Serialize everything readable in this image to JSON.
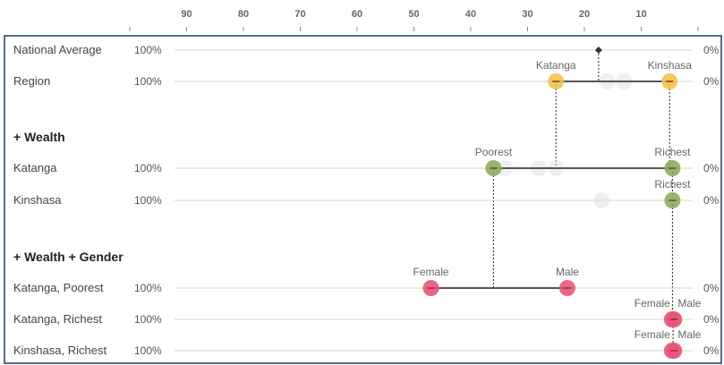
{
  "chart_data": {
    "type": "scatter",
    "x_axis": {
      "ticks": [
        90,
        80,
        70,
        60,
        50,
        40,
        30,
        20,
        10
      ],
      "range": [
        100,
        0
      ],
      "left_label": "100%",
      "right_label": "0%"
    },
    "colors": {
      "region": "#f1c34a",
      "wealth": "#8faa5f",
      "gender": "#e8557a",
      "ghost": "#dcdcdc",
      "line": "#555555",
      "frame": "#1f3b6f"
    },
    "sections": [
      {
        "id": "wealth",
        "label": "+ Wealth"
      },
      {
        "id": "wealth_gender",
        "label": "+ Wealth + Gender"
      }
    ],
    "rows": [
      {
        "id": "national",
        "label": "National Average",
        "left": "100%",
        "right": "0%",
        "points": [
          {
            "name": "",
            "value": 17.5,
            "label": "",
            "shape": "diamond"
          }
        ]
      },
      {
        "id": "region",
        "label": "Region",
        "left": "100%",
        "right": "0%",
        "points": [
          {
            "name": "Katanga",
            "value": 25,
            "label": "Katanga",
            "color": "region"
          },
          {
            "name": "Kinshasa",
            "value": 5,
            "label": "Kinshasa",
            "color": "region"
          }
        ],
        "ghosts": [
          16,
          13
        ]
      },
      {
        "id": "katanga",
        "label": "Katanga",
        "left": "100%",
        "right": "0%",
        "points": [
          {
            "name": "Poorest",
            "value": 36,
            "label": "Poorest",
            "color": "wealth"
          },
          {
            "name": "Richest",
            "value": 4.5,
            "label": "Richest",
            "color": "wealth"
          }
        ],
        "ghosts": [
          34,
          28,
          25
        ]
      },
      {
        "id": "kinshasa",
        "label": "Kinshasa",
        "left": "100%",
        "right": "0%",
        "points": [
          {
            "name": "Richest",
            "value": 4.5,
            "label": "Richest",
            "color": "wealth"
          }
        ],
        "ghosts": [
          17
        ]
      },
      {
        "id": "katanga_poorest",
        "label": "Katanga, Poorest",
        "left": "100%",
        "right": "0%",
        "points": [
          {
            "name": "Female",
            "value": 47,
            "label": "Female",
            "color": "gender"
          },
          {
            "name": "Male",
            "value": 23,
            "label": "Male",
            "color": "gender"
          }
        ]
      },
      {
        "id": "katanga_richest",
        "label": "Katanga, Richest",
        "left": "100%",
        "right": "0%",
        "points": [
          {
            "name": "Female",
            "value": 4.6,
            "label": "Female",
            "color": "gender"
          },
          {
            "name": "Male",
            "value": 4.2,
            "label": "Male",
            "color": "gender"
          }
        ]
      },
      {
        "id": "kinshasa_richest",
        "label": "Kinshasa, Richest",
        "left": "100%",
        "right": "0%",
        "points": [
          {
            "name": "Female",
            "value": 4.6,
            "label": "Female",
            "color": "gender"
          },
          {
            "name": "Male",
            "value": 4.2,
            "label": "Male",
            "color": "gender"
          }
        ]
      }
    ]
  }
}
